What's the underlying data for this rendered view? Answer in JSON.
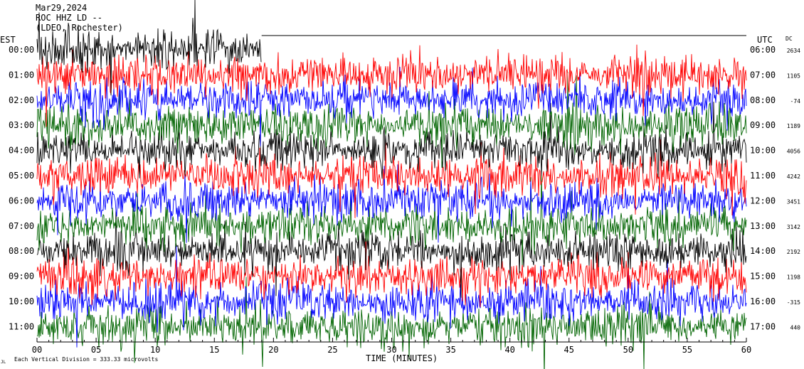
{
  "header": {
    "date": "Mar29,2024",
    "station": "ROC HHZ LD --",
    "location": "(LDEO, Rochester)"
  },
  "footer": {
    "scale_note": "Each Vertical Division =  333.33 microvolts",
    "corner_mark": "JL"
  },
  "chart_data": {
    "type": "line",
    "subtype": "helicorder",
    "left_axis_label": "EST",
    "right_axis_label": "UTC",
    "dc_label": "DC",
    "xlabel": "TIME (MINUTES)",
    "xlim": [
      0,
      60
    ],
    "x_ticks": [
      "00",
      "05",
      "10",
      "15",
      "20",
      "25",
      "30",
      "35",
      "40",
      "45",
      "50",
      "55",
      "60"
    ],
    "colors_cycle": [
      "#000000",
      "#ff0000",
      "#0000ff",
      "#006400"
    ],
    "rows": [
      {
        "est": "00:00",
        "utc": "06:00",
        "dc": "2634",
        "color": "#000000",
        "x_end": 19
      },
      {
        "est": "01:00",
        "utc": "07:00",
        "dc": "1105",
        "color": "#ff0000"
      },
      {
        "est": "02:00",
        "utc": "08:00",
        "dc": "-74",
        "color": "#0000ff"
      },
      {
        "est": "03:00",
        "utc": "09:00",
        "dc": "1189",
        "color": "#006400"
      },
      {
        "est": "04:00",
        "utc": "10:00",
        "dc": "4056",
        "color": "#000000"
      },
      {
        "est": "05:00",
        "utc": "11:00",
        "dc": "4242",
        "color": "#ff0000"
      },
      {
        "est": "06:00",
        "utc": "12:00",
        "dc": "3451",
        "color": "#0000ff"
      },
      {
        "est": "07:00",
        "utc": "13:00",
        "dc": "3142",
        "color": "#006400"
      },
      {
        "est": "08:00",
        "utc": "14:00",
        "dc": "2192",
        "color": "#000000"
      },
      {
        "est": "09:00",
        "utc": "15:00",
        "dc": "1198",
        "color": "#ff0000"
      },
      {
        "est": "10:00",
        "utc": "16:00",
        "dc": "-315",
        "color": "#0000ff"
      },
      {
        "est": "11:00",
        "utc": "17:00",
        "dc": "440",
        "color": "#006400"
      }
    ]
  }
}
